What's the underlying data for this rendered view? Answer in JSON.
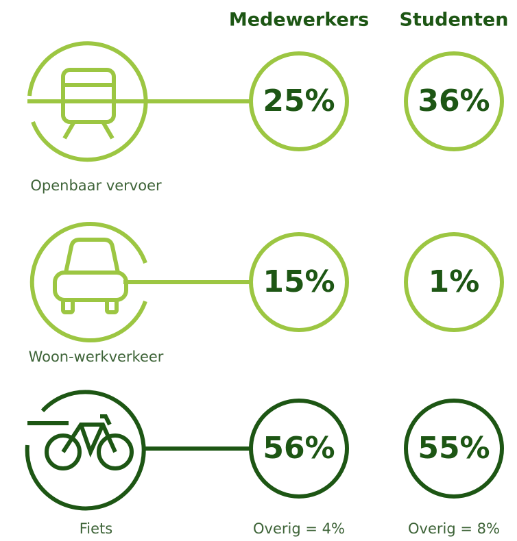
{
  "headers": [
    "Medewerkers",
    "Studenten"
  ],
  "rows": [
    {
      "label": "Openbaar vervoer",
      "values": [
        "25%",
        "36%"
      ]
    },
    {
      "label": "Woon-werkverkeer",
      "values": [
        "15%",
        "1%"
      ]
    },
    {
      "label": "Fiets",
      "values": [
        "56%",
        "55%"
      ]
    }
  ],
  "notes": [
    "Overig = 4%",
    "Overig = 8%"
  ]
}
